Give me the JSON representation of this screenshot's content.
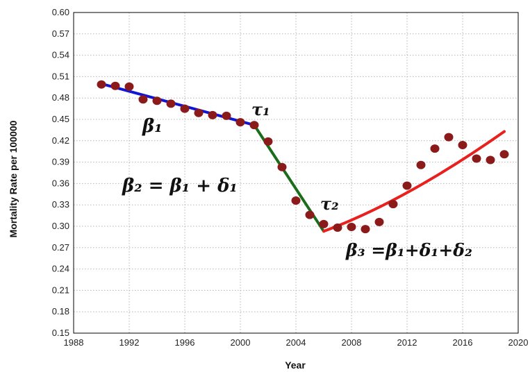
{
  "chart_data": {
    "type": "scatter",
    "title": "",
    "xlabel": "Year",
    "ylabel": "Mortality Rate per 100000",
    "xlim": [
      1988,
      2020
    ],
    "ylim": [
      0.15,
      0.6
    ],
    "grid": true,
    "x_ticks": [
      "1988",
      "1992",
      "1996",
      "2000",
      "2004",
      "2008",
      "2012",
      "2016",
      "2020"
    ],
    "y_ticks": [
      "0.15",
      "0.18",
      "0.21",
      "0.24",
      "0.27",
      "0.30",
      "0.33",
      "0.36",
      "0.39",
      "0.42",
      "0.45",
      "0.48",
      "0.51",
      "0.54",
      "0.57",
      "0.60"
    ],
    "points": {
      "color": "#8b1a1a",
      "x": [
        1990,
        1991,
        1992,
        1993,
        1994,
        1995,
        1996,
        1997,
        1998,
        1999,
        2000,
        2001,
        2002,
        2003,
        2004,
        2005,
        2006,
        2007,
        2008,
        2009,
        2010,
        2011,
        2012,
        2013,
        2014,
        2015,
        2016,
        2017,
        2018,
        2019
      ],
      "y": [
        0.499,
        0.497,
        0.496,
        0.478,
        0.476,
        0.472,
        0.465,
        0.459,
        0.456,
        0.455,
        0.446,
        0.442,
        0.419,
        0.383,
        0.336,
        0.316,
        0.303,
        0.298,
        0.299,
        0.296,
        0.306,
        0.331,
        0.357,
        0.386,
        0.409,
        0.425,
        0.414,
        0.395,
        0.393,
        0.401
      ]
    },
    "segments": [
      {
        "color": "#1414d4",
        "x": [
          1990,
          2001
        ],
        "y": [
          0.5,
          0.442
        ]
      },
      {
        "color": "#1a6e1a",
        "x": [
          2001,
          2006
        ],
        "y": [
          0.442,
          0.293
        ]
      },
      {
        "color": "#e8201e",
        "x": [
          2006,
          2019
        ],
        "y": [
          0.293,
          0.433
        ],
        "curve": true
      }
    ],
    "annotations": {
      "beta1": "β₁",
      "tau1": "τ₁",
      "beta2": "β₂ = β₁ + δ₁",
      "tau2": "τ₂",
      "beta3": "β₃ =β₁+δ₁+δ₂"
    }
  }
}
